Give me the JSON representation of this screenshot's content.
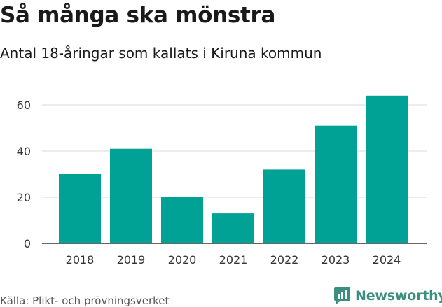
{
  "header": {
    "title": "Så många ska mönstra",
    "subtitle": "Antal 18-åringar som kallats i Kiruna kommun"
  },
  "footer": {
    "source": "Källa: Plikt- och prövningsverket",
    "brand": "Newsworthy"
  },
  "colors": {
    "bar": "#00a296",
    "grid": "#d9d9d9",
    "brand": "#3a8f7e"
  },
  "icons": {
    "brand_logo": "newsworthy-logo-icon"
  },
  "chart_data": {
    "type": "bar",
    "categories": [
      "2018",
      "2019",
      "2020",
      "2021",
      "2022",
      "2023",
      "2024"
    ],
    "values": [
      30,
      41,
      20,
      13,
      32,
      51,
      64
    ],
    "title": "Så många ska mönstra",
    "subtitle": "Antal 18-åringar som kallats i Kiruna kommun",
    "xlabel": "",
    "ylabel": "",
    "ylim": [
      0,
      70
    ],
    "yticks": [
      0,
      20,
      40,
      60
    ],
    "grid": true,
    "legend": "none"
  }
}
